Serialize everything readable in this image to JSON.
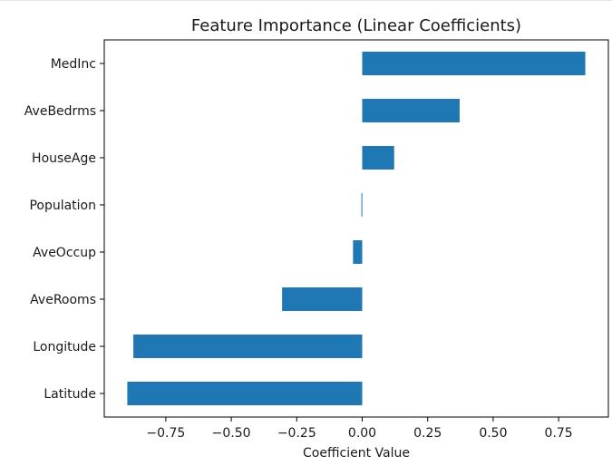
{
  "chart_data": {
    "type": "bar",
    "orientation": "horizontal",
    "title": "Feature Importance (Linear Coefficients)",
    "xlabel": "Coefficient Value",
    "ylabel": "",
    "categories": [
      "MedInc",
      "AveBedrms",
      "HouseAge",
      "Population",
      "AveOccup",
      "AveRooms",
      "Longitude",
      "Latitude"
    ],
    "values": [
      0.852,
      0.372,
      0.122,
      -0.003,
      -0.035,
      -0.306,
      -0.874,
      -0.897
    ],
    "xlim": [
      -0.985,
      0.94
    ],
    "xticks": [
      -0.75,
      -0.5,
      -0.25,
      0.0,
      0.25,
      0.5,
      0.75
    ],
    "xtick_labels": [
      "−0.75",
      "−0.50",
      "−0.25",
      "0.00",
      "0.25",
      "0.50",
      "0.75"
    ],
    "grid": false,
    "legend": "none",
    "bar_color": "#1f77b4",
    "axis_color": "#000000"
  }
}
